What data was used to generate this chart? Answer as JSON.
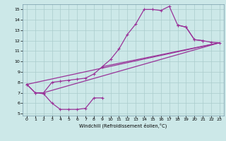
{
  "background_color": "#cce8e8",
  "grid_color": "#aacccc",
  "line_color": "#993399",
  "marker": "+",
  "markersize": 3.5,
  "linewidth": 0.9,
  "xlim": [
    -0.5,
    23.5
  ],
  "ylim": [
    4.8,
    15.5
  ],
  "xticks": [
    0,
    1,
    2,
    3,
    4,
    5,
    6,
    7,
    8,
    9,
    10,
    11,
    12,
    13,
    14,
    15,
    16,
    17,
    18,
    19,
    20,
    21,
    22,
    23
  ],
  "yticks": [
    5,
    6,
    7,
    8,
    9,
    10,
    11,
    12,
    13,
    14,
    15
  ],
  "xlabel": "Windchill (Refroidissement éolien,°C)",
  "curve1_x": [
    0,
    1,
    2,
    3,
    4,
    5,
    6,
    7,
    8,
    9
  ],
  "curve1_y": [
    7.8,
    7.0,
    6.9,
    6.0,
    5.4,
    5.4,
    5.4,
    5.5,
    6.5,
    6.5
  ],
  "curve2_x": [
    0,
    1,
    2,
    3,
    4,
    5,
    6,
    7,
    8,
    9,
    10,
    11,
    12,
    13,
    14,
    15,
    16,
    17,
    18,
    19,
    20,
    21
  ],
  "curve2_y": [
    7.8,
    7.0,
    7.0,
    8.0,
    8.1,
    8.2,
    8.3,
    8.4,
    8.8,
    9.5,
    10.2,
    11.2,
    12.6,
    13.6,
    15.0,
    15.0,
    14.9,
    15.3,
    13.5,
    13.3,
    12.1,
    12.0
  ],
  "curve3_x": [
    18,
    19,
    20,
    21,
    22,
    23
  ],
  "curve3_y": [
    13.5,
    13.3,
    12.1,
    12.0,
    11.85,
    11.8
  ],
  "line1_x": [
    0,
    23
  ],
  "line1_y": [
    7.8,
    11.8
  ],
  "line2_x": [
    2,
    23
  ],
  "line2_y": [
    7.0,
    11.8
  ],
  "line3_x": [
    9,
    23
  ],
  "line3_y": [
    9.5,
    11.8
  ]
}
